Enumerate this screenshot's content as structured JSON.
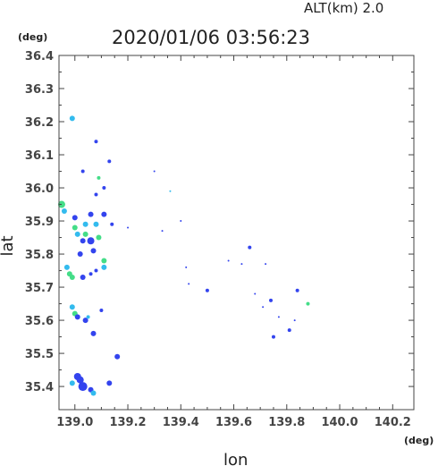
{
  "header": {
    "altitude_label": "ALT(km)  2.0",
    "timestamp": "2020/01/06 03:56:23"
  },
  "chart_data": {
    "type": "scatter",
    "title": "2020/01/06 03:56:23",
    "xlabel": "lon",
    "ylabel": "lat",
    "x_unit": "(deg)",
    "y_unit": "(deg)",
    "xlim": [
      138.94,
      140.28
    ],
    "ylim": [
      35.33,
      36.4
    ],
    "x_ticks": [
      139.0,
      139.2,
      139.4,
      139.6,
      139.8,
      140.0,
      140.2
    ],
    "x_tick_labels": [
      "139.0",
      "139.2",
      "139.4",
      "139.6",
      "139.8",
      "140.0",
      "140.2"
    ],
    "y_ticks": [
      35.4,
      35.5,
      35.6,
      35.7,
      35.8,
      35.9,
      36.0,
      36.1,
      36.2,
      36.3,
      36.4
    ],
    "y_tick_labels": [
      "35.4",
      "35.5",
      "35.6",
      "35.7",
      "35.8",
      "35.9",
      "36.0",
      "36.1",
      "36.2",
      "36.3",
      "36.4"
    ],
    "grid": false,
    "colors": {
      "blue": "#3344ee",
      "cyan": "#33bbee",
      "green": "#44dd88",
      "axis": "#444444"
    },
    "points": [
      {
        "lon": 138.99,
        "lat": 36.21,
        "c": "cyan",
        "s": 3
      },
      {
        "lon": 139.08,
        "lat": 36.14,
        "c": "blue",
        "s": 2
      },
      {
        "lon": 139.13,
        "lat": 36.08,
        "c": "blue",
        "s": 2
      },
      {
        "lon": 139.03,
        "lat": 36.05,
        "c": "blue",
        "s": 2
      },
      {
        "lon": 139.09,
        "lat": 36.03,
        "c": "green",
        "s": 2
      },
      {
        "lon": 139.11,
        "lat": 36.0,
        "c": "blue",
        "s": 2
      },
      {
        "lon": 139.08,
        "lat": 35.98,
        "c": "blue",
        "s": 2
      },
      {
        "lon": 138.95,
        "lat": 35.95,
        "c": "green",
        "s": 4
      },
      {
        "lon": 138.96,
        "lat": 35.93,
        "c": "cyan",
        "s": 3
      },
      {
        "lon": 139.06,
        "lat": 35.92,
        "c": "blue",
        "s": 3
      },
      {
        "lon": 139.0,
        "lat": 35.91,
        "c": "blue",
        "s": 3
      },
      {
        "lon": 139.11,
        "lat": 35.92,
        "c": "blue",
        "s": 3
      },
      {
        "lon": 139.0,
        "lat": 35.88,
        "c": "green",
        "s": 3
      },
      {
        "lon": 139.04,
        "lat": 35.89,
        "c": "cyan",
        "s": 3
      },
      {
        "lon": 139.08,
        "lat": 35.89,
        "c": "cyan",
        "s": 3
      },
      {
        "lon": 139.01,
        "lat": 35.86,
        "c": "cyan",
        "s": 3
      },
      {
        "lon": 139.04,
        "lat": 35.86,
        "c": "green",
        "s": 3
      },
      {
        "lon": 139.06,
        "lat": 35.84,
        "c": "blue",
        "s": 4
      },
      {
        "lon": 139.03,
        "lat": 35.84,
        "c": "blue",
        "s": 3
      },
      {
        "lon": 139.09,
        "lat": 35.85,
        "c": "green",
        "s": 3
      },
      {
        "lon": 139.14,
        "lat": 35.89,
        "c": "blue",
        "s": 2
      },
      {
        "lon": 139.02,
        "lat": 35.8,
        "c": "blue",
        "s": 3
      },
      {
        "lon": 139.07,
        "lat": 35.81,
        "c": "blue",
        "s": 3
      },
      {
        "lon": 139.11,
        "lat": 35.78,
        "c": "green",
        "s": 3
      },
      {
        "lon": 139.11,
        "lat": 35.76,
        "c": "cyan",
        "s": 3
      },
      {
        "lon": 138.97,
        "lat": 35.76,
        "c": "cyan",
        "s": 3
      },
      {
        "lon": 138.98,
        "lat": 35.74,
        "c": "green",
        "s": 3
      },
      {
        "lon": 138.99,
        "lat": 35.73,
        "c": "green",
        "s": 3
      },
      {
        "lon": 139.03,
        "lat": 35.73,
        "c": "blue",
        "s": 3
      },
      {
        "lon": 139.06,
        "lat": 35.74,
        "c": "blue",
        "s": 2
      },
      {
        "lon": 139.08,
        "lat": 35.75,
        "c": "blue",
        "s": 2
      },
      {
        "lon": 138.99,
        "lat": 35.64,
        "c": "cyan",
        "s": 3
      },
      {
        "lon": 139.0,
        "lat": 35.62,
        "c": "green",
        "s": 3
      },
      {
        "lon": 139.01,
        "lat": 35.61,
        "c": "blue",
        "s": 3
      },
      {
        "lon": 139.04,
        "lat": 35.6,
        "c": "blue",
        "s": 3
      },
      {
        "lon": 139.05,
        "lat": 35.61,
        "c": "cyan",
        "s": 2
      },
      {
        "lon": 139.1,
        "lat": 35.63,
        "c": "blue",
        "s": 2
      },
      {
        "lon": 139.07,
        "lat": 35.56,
        "c": "blue",
        "s": 3
      },
      {
        "lon": 139.16,
        "lat": 35.49,
        "c": "blue",
        "s": 3
      },
      {
        "lon": 139.01,
        "lat": 35.43,
        "c": "blue",
        "s": 4
      },
      {
        "lon": 139.02,
        "lat": 35.42,
        "c": "blue",
        "s": 4
      },
      {
        "lon": 138.99,
        "lat": 35.41,
        "c": "cyan",
        "s": 3
      },
      {
        "lon": 139.03,
        "lat": 35.4,
        "c": "blue",
        "s": 5
      },
      {
        "lon": 139.06,
        "lat": 35.39,
        "c": "blue",
        "s": 3
      },
      {
        "lon": 139.07,
        "lat": 35.38,
        "c": "cyan",
        "s": 3
      },
      {
        "lon": 139.13,
        "lat": 35.41,
        "c": "blue",
        "s": 3
      },
      {
        "lon": 139.2,
        "lat": 35.88,
        "c": "blue",
        "s": 1
      },
      {
        "lon": 139.3,
        "lat": 36.05,
        "c": "blue",
        "s": 1
      },
      {
        "lon": 139.36,
        "lat": 35.99,
        "c": "cyan",
        "s": 1
      },
      {
        "lon": 139.33,
        "lat": 35.87,
        "c": "blue",
        "s": 1
      },
      {
        "lon": 139.4,
        "lat": 35.9,
        "c": "blue",
        "s": 1
      },
      {
        "lon": 139.42,
        "lat": 35.76,
        "c": "blue",
        "s": 1
      },
      {
        "lon": 139.43,
        "lat": 35.71,
        "c": "blue",
        "s": 1
      },
      {
        "lon": 139.5,
        "lat": 35.69,
        "c": "blue",
        "s": 2
      },
      {
        "lon": 139.58,
        "lat": 35.78,
        "c": "blue",
        "s": 1
      },
      {
        "lon": 139.66,
        "lat": 35.82,
        "c": "blue",
        "s": 2
      },
      {
        "lon": 139.63,
        "lat": 35.77,
        "c": "blue",
        "s": 1
      },
      {
        "lon": 139.72,
        "lat": 35.77,
        "c": "blue",
        "s": 1
      },
      {
        "lon": 139.68,
        "lat": 35.68,
        "c": "blue",
        "s": 1
      },
      {
        "lon": 139.74,
        "lat": 35.66,
        "c": "blue",
        "s": 2
      },
      {
        "lon": 139.71,
        "lat": 35.64,
        "c": "blue",
        "s": 1
      },
      {
        "lon": 139.77,
        "lat": 35.61,
        "c": "blue",
        "s": 1
      },
      {
        "lon": 139.75,
        "lat": 35.55,
        "c": "blue",
        "s": 2
      },
      {
        "lon": 139.81,
        "lat": 35.57,
        "c": "blue",
        "s": 2
      },
      {
        "lon": 139.83,
        "lat": 35.6,
        "c": "blue",
        "s": 1
      },
      {
        "lon": 139.84,
        "lat": 35.69,
        "c": "blue",
        "s": 2
      },
      {
        "lon": 139.88,
        "lat": 35.65,
        "c": "green",
        "s": 2
      }
    ]
  }
}
